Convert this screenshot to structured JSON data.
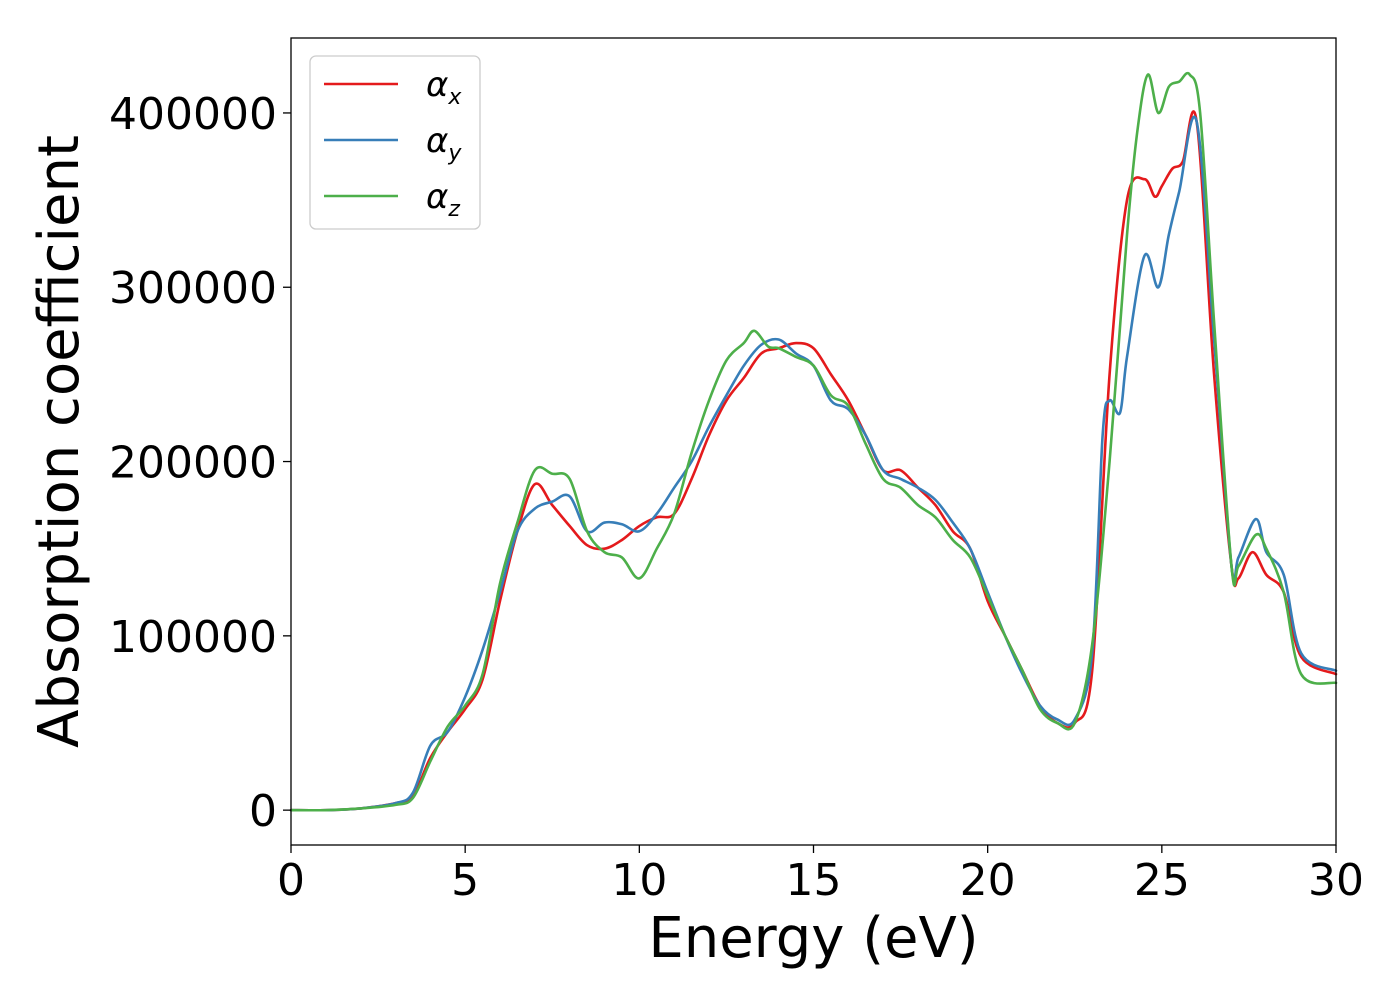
{
  "chart_data": {
    "type": "line",
    "title": "",
    "xlabel": "Energy (eV)",
    "ylabel": "Absorption coefficient",
    "xlim": [
      0,
      30
    ],
    "ylim": [
      -20000,
      443000
    ],
    "xticks": [
      0,
      5,
      10,
      15,
      20,
      25,
      30
    ],
    "xtick_labels": [
      "0",
      "5",
      "10",
      "15",
      "20",
      "25",
      "30"
    ],
    "yticks": [
      0,
      100000,
      200000,
      300000,
      400000
    ],
    "ytick_labels": [
      "0",
      "100000",
      "200000",
      "300000",
      "400000"
    ],
    "grid": false,
    "legend": "top-left",
    "series": [
      {
        "name": "αx",
        "symbol": "α",
        "subscript": "x",
        "color": "#e41a1c",
        "x": [
          0,
          1,
          2,
          3,
          3.5,
          4,
          4.5,
          5,
          5.5,
          6,
          6.5,
          7,
          7.5,
          8,
          8.5,
          9,
          9.5,
          10,
          10.5,
          11,
          11.5,
          12,
          12.5,
          13,
          13.5,
          14,
          14.5,
          15,
          15.5,
          16,
          16.5,
          17,
          17.5,
          18,
          18.5,
          19,
          19.5,
          20,
          20.5,
          21,
          21.5,
          22,
          22.5,
          23,
          23.5,
          24,
          24.5,
          24.8,
          25,
          25.3,
          25.6,
          26,
          26.5,
          27,
          27.2,
          27.6,
          28,
          28.5,
          29,
          30
        ],
        "values": [
          0,
          0,
          1000,
          4000,
          8000,
          30000,
          45000,
          58000,
          75000,
          120000,
          160000,
          187000,
          175000,
          163000,
          152000,
          150000,
          155000,
          163000,
          168000,
          170000,
          190000,
          215000,
          235000,
          248000,
          262000,
          265000,
          268000,
          265000,
          250000,
          235000,
          215000,
          195000,
          195000,
          185000,
          175000,
          160000,
          150000,
          120000,
          100000,
          80000,
          60000,
          50000,
          50000,
          80000,
          250000,
          350000,
          362000,
          352000,
          358000,
          368000,
          372000,
          395000,
          250000,
          140000,
          133000,
          148000,
          135000,
          125000,
          88000,
          78000
        ]
      },
      {
        "name": "αy",
        "symbol": "α",
        "subscript": "y",
        "color": "#377eb8",
        "x": [
          0,
          1,
          2,
          3,
          3.5,
          4,
          4.5,
          5,
          5.5,
          6,
          6.5,
          7,
          7.5,
          8,
          8.5,
          9,
          9.5,
          10,
          10.5,
          11,
          11.5,
          12,
          12.5,
          13,
          13.5,
          14,
          14.5,
          15,
          15.5,
          16,
          16.5,
          17,
          17.5,
          18,
          18.5,
          19,
          19.5,
          20,
          20.5,
          21,
          21.5,
          22,
          22.5,
          23,
          23.3,
          23.5,
          23.8,
          24,
          24.5,
          24.9,
          25.2,
          25.5,
          26,
          26.5,
          27,
          27.2,
          27.7,
          28,
          28.5,
          29,
          30
        ],
        "values": [
          0,
          0,
          1000,
          4000,
          10000,
          37000,
          45000,
          65000,
          92000,
          125000,
          160000,
          173000,
          177000,
          180000,
          160000,
          165000,
          164000,
          160000,
          170000,
          185000,
          200000,
          220000,
          238000,
          255000,
          267000,
          270000,
          262000,
          255000,
          235000,
          230000,
          215000,
          195000,
          190000,
          185000,
          178000,
          165000,
          150000,
          125000,
          100000,
          78000,
          60000,
          52000,
          52000,
          90000,
          215000,
          235000,
          228000,
          260000,
          318000,
          300000,
          330000,
          355000,
          395000,
          270000,
          140000,
          145000,
          167000,
          148000,
          135000,
          90000,
          80000
        ]
      },
      {
        "name": "αz",
        "symbol": "α",
        "subscript": "z",
        "color": "#4daf4a",
        "x": [
          0,
          1,
          2,
          3,
          3.5,
          4,
          4.5,
          5,
          5.5,
          6,
          6.5,
          7,
          7.5,
          8,
          8.5,
          9,
          9.5,
          10,
          10.5,
          11,
          11.5,
          12,
          12.5,
          13,
          13.3,
          13.7,
          14,
          14.5,
          15,
          15.5,
          16,
          16.5,
          17,
          17.5,
          18,
          18.5,
          19,
          19.5,
          20,
          20.5,
          21,
          21.5,
          22,
          22.5,
          23,
          23.5,
          24,
          24.3,
          24.6,
          24.9,
          25.2,
          25.5,
          25.8,
          26.1,
          26.5,
          27,
          27.2,
          27.7,
          28,
          28.5,
          29,
          30
        ],
        "values": [
          0,
          0,
          1000,
          3000,
          7000,
          28000,
          48000,
          60000,
          78000,
          130000,
          165000,
          195000,
          193000,
          190000,
          160000,
          148000,
          145000,
          133000,
          150000,
          170000,
          205000,
          235000,
          258000,
          268000,
          275000,
          266000,
          265000,
          260000,
          255000,
          238000,
          232000,
          210000,
          190000,
          185000,
          175000,
          168000,
          155000,
          145000,
          123000,
          100000,
          80000,
          58000,
          50000,
          50000,
          95000,
          200000,
          330000,
          390000,
          422000,
          400000,
          415000,
          418000,
          422000,
          400000,
          280000,
          140000,
          140000,
          158000,
          150000,
          125000,
          78000,
          73000
        ]
      }
    ]
  }
}
